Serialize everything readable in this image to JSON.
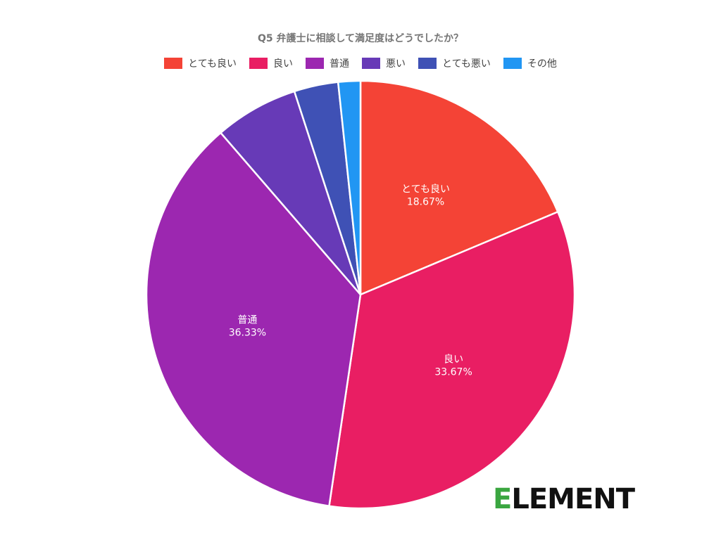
{
  "chart_data": {
    "type": "pie",
    "title": "Q5 弁護士に相談して満足度はどうでしたか？",
    "categories": [
      "とても良い",
      "良い",
      "普通",
      "悪い",
      "とても悪い",
      "その他"
    ],
    "values": [
      18.67,
      33.67,
      36.33,
      6.33,
      3.33,
      1.67
    ],
    "value_labels": [
      "18.67%",
      "33.67%",
      "36.33%",
      "",
      "",
      ""
    ],
    "colors": [
      "#f44336",
      "#e91e63",
      "#9c27b0",
      "#673ab7",
      "#3f51b5",
      "#2196f3"
    ],
    "legend_position": "top"
  },
  "logo": {
    "text_first": "E",
    "text_rest": "LEMENT",
    "accent_color": "#3aa640"
  }
}
